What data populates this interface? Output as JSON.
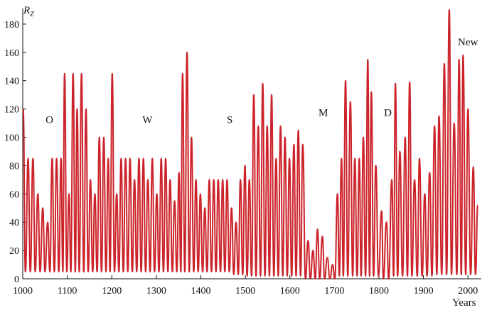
{
  "chart_data": {
    "type": "line",
    "title": "",
    "xlabel": "Years",
    "ylabel": "R",
    "ylabel_sub": "Z",
    "xlim": [
      1000,
      2030
    ],
    "ylim": [
      0,
      190
    ],
    "grid": false,
    "legend": "none",
    "line_color": "#cc2229",
    "x_ticks": [
      "1000",
      "1100",
      "1200",
      "1300",
      "1400",
      "1500",
      "1600",
      "1700",
      "1800",
      "1900",
      "2000"
    ],
    "y_ticks": [
      "0",
      "20",
      "40",
      "60",
      "80",
      "100",
      "120",
      "140",
      "160",
      "180"
    ],
    "annotations": [
      {
        "text": "O",
        "x": 1060,
        "y": 110
      },
      {
        "text": "W",
        "x": 1280,
        "y": 110
      },
      {
        "text": "S",
        "x": 1465,
        "y": 110
      },
      {
        "text": "M",
        "x": 1675,
        "y": 115
      },
      {
        "text": "D",
        "x": 1820,
        "y": 115
      },
      {
        "text": "New",
        "x": 2000,
        "y": 165
      }
    ],
    "series": [
      {
        "peaks": [
          [
            1001,
            120
          ],
          [
            1012,
            85
          ],
          [
            1023,
            85
          ],
          [
            1034,
            60
          ],
          [
            1045,
            50
          ],
          [
            1056,
            40
          ],
          [
            1066,
            85
          ],
          [
            1076,
            85
          ],
          [
            1086,
            85
          ],
          [
            1094,
            145
          ],
          [
            1104,
            60
          ],
          [
            1113,
            145
          ],
          [
            1122,
            120
          ],
          [
            1132,
            145
          ],
          [
            1142,
            120
          ],
          [
            1152,
            70
          ],
          [
            1162,
            60
          ],
          [
            1172,
            100
          ],
          [
            1182,
            100
          ],
          [
            1192,
            85
          ],
          [
            1201,
            145
          ],
          [
            1211,
            60
          ],
          [
            1221,
            85
          ],
          [
            1231,
            85
          ],
          [
            1241,
            85
          ],
          [
            1251,
            70
          ],
          [
            1261,
            85
          ],
          [
            1271,
            85
          ],
          [
            1281,
            70
          ],
          [
            1291,
            85
          ],
          [
            1301,
            60
          ],
          [
            1311,
            85
          ],
          [
            1321,
            85
          ],
          [
            1331,
            70
          ],
          [
            1341,
            55
          ],
          [
            1351,
            75
          ],
          [
            1359,
            145
          ],
          [
            1369,
            160
          ],
          [
            1379,
            100
          ],
          [
            1389,
            70
          ],
          [
            1399,
            60
          ],
          [
            1409,
            50
          ],
          [
            1419,
            70
          ],
          [
            1429,
            70
          ],
          [
            1439,
            70
          ],
          [
            1449,
            70
          ],
          [
            1459,
            70
          ],
          [
            1469,
            50
          ],
          [
            1479,
            40
          ],
          [
            1489,
            70
          ],
          [
            1499,
            80
          ],
          [
            1509,
            70
          ],
          [
            1519,
            130
          ],
          [
            1529,
            108
          ],
          [
            1539,
            138
          ],
          [
            1549,
            108
          ],
          [
            1559,
            130
          ],
          [
            1569,
            85
          ],
          [
            1579,
            108
          ],
          [
            1589,
            100
          ],
          [
            1599,
            85
          ],
          [
            1609,
            95
          ],
          [
            1619,
            105
          ],
          [
            1629,
            95
          ],
          [
            1641,
            27
          ],
          [
            1652,
            20
          ],
          [
            1662,
            35
          ],
          [
            1673,
            30
          ],
          [
            1684,
            15
          ],
          [
            1696,
            10
          ],
          [
            1707,
            60
          ],
          [
            1716,
            85
          ],
          [
            1725,
            140
          ],
          [
            1736,
            125
          ],
          [
            1746,
            85
          ],
          [
            1756,
            85
          ],
          [
            1765,
            100
          ],
          [
            1775,
            155
          ],
          [
            1783,
            132
          ],
          [
            1793,
            80
          ],
          [
            1806,
            48
          ],
          [
            1817,
            40
          ],
          [
            1829,
            70
          ],
          [
            1837,
            138
          ],
          [
            1847,
            90
          ],
          [
            1859,
            100
          ],
          [
            1869,
            139
          ],
          [
            1880,
            70
          ],
          [
            1891,
            85
          ],
          [
            1903,
            60
          ],
          [
            1914,
            75
          ],
          [
            1925,
            108
          ],
          [
            1935,
            115
          ],
          [
            1947,
            152
          ],
          [
            1958,
            190
          ],
          [
            1969,
            110
          ],
          [
            1980,
            155
          ],
          [
            1989,
            158
          ],
          [
            2000,
            120
          ],
          [
            2012,
            79
          ],
          [
            2022,
            52
          ]
        ],
        "minima": [
          [
            1006,
            5
          ],
          [
            1017,
            5
          ],
          [
            1028,
            5
          ],
          [
            1039,
            5
          ],
          [
            1050,
            5
          ],
          [
            1061,
            5
          ],
          [
            1071,
            5
          ],
          [
            1081,
            5
          ],
          [
            1090,
            5
          ],
          [
            1099,
            5
          ],
          [
            1108,
            5
          ],
          [
            1118,
            5
          ],
          [
            1127,
            5
          ],
          [
            1137,
            5
          ],
          [
            1147,
            5
          ],
          [
            1157,
            5
          ],
          [
            1167,
            5
          ],
          [
            1177,
            5
          ],
          [
            1187,
            5
          ],
          [
            1196,
            5
          ],
          [
            1206,
            5
          ],
          [
            1216,
            5
          ],
          [
            1226,
            5
          ],
          [
            1236,
            5
          ],
          [
            1246,
            5
          ],
          [
            1256,
            5
          ],
          [
            1266,
            5
          ],
          [
            1276,
            5
          ],
          [
            1286,
            5
          ],
          [
            1296,
            5
          ],
          [
            1306,
            5
          ],
          [
            1316,
            5
          ],
          [
            1326,
            5
          ],
          [
            1336,
            5
          ],
          [
            1346,
            5
          ],
          [
            1355,
            5
          ],
          [
            1364,
            5
          ],
          [
            1374,
            5
          ],
          [
            1384,
            5
          ],
          [
            1394,
            5
          ],
          [
            1404,
            5
          ],
          [
            1414,
            5
          ],
          [
            1424,
            5
          ],
          [
            1434,
            5
          ],
          [
            1444,
            5
          ],
          [
            1454,
            5
          ],
          [
            1464,
            5
          ],
          [
            1474,
            3
          ],
          [
            1484,
            3
          ],
          [
            1494,
            3
          ],
          [
            1504,
            2
          ],
          [
            1514,
            2
          ],
          [
            1524,
            2
          ],
          [
            1534,
            2
          ],
          [
            1544,
            2
          ],
          [
            1554,
            2
          ],
          [
            1564,
            2
          ],
          [
            1574,
            2
          ],
          [
            1584,
            2
          ],
          [
            1594,
            2
          ],
          [
            1604,
            2
          ],
          [
            1614,
            2
          ],
          [
            1624,
            2
          ],
          [
            1635,
            0
          ],
          [
            1646,
            0
          ],
          [
            1657,
            0
          ],
          [
            1667,
            0
          ],
          [
            1678,
            0
          ],
          [
            1690,
            0
          ],
          [
            1701,
            0
          ],
          [
            1711,
            2
          ],
          [
            1720,
            2
          ],
          [
            1730,
            2
          ],
          [
            1741,
            2
          ],
          [
            1751,
            2
          ],
          [
            1760,
            2
          ],
          [
            1770,
            2
          ],
          [
            1779,
            2
          ],
          [
            1788,
            2
          ],
          [
            1799,
            2
          ],
          [
            1810,
            0
          ],
          [
            1822,
            0
          ],
          [
            1833,
            2
          ],
          [
            1842,
            2
          ],
          [
            1853,
            2
          ],
          [
            1864,
            2
          ],
          [
            1874,
            2
          ],
          [
            1886,
            2
          ],
          [
            1897,
            2
          ],
          [
            1908,
            2
          ],
          [
            1919,
            2
          ],
          [
            1930,
            3
          ],
          [
            1941,
            3
          ],
          [
            1952,
            3
          ],
          [
            1963,
            3
          ],
          [
            1975,
            3
          ],
          [
            1985,
            3
          ],
          [
            1995,
            3
          ],
          [
            2006,
            3
          ],
          [
            2017,
            3
          ]
        ]
      }
    ]
  }
}
